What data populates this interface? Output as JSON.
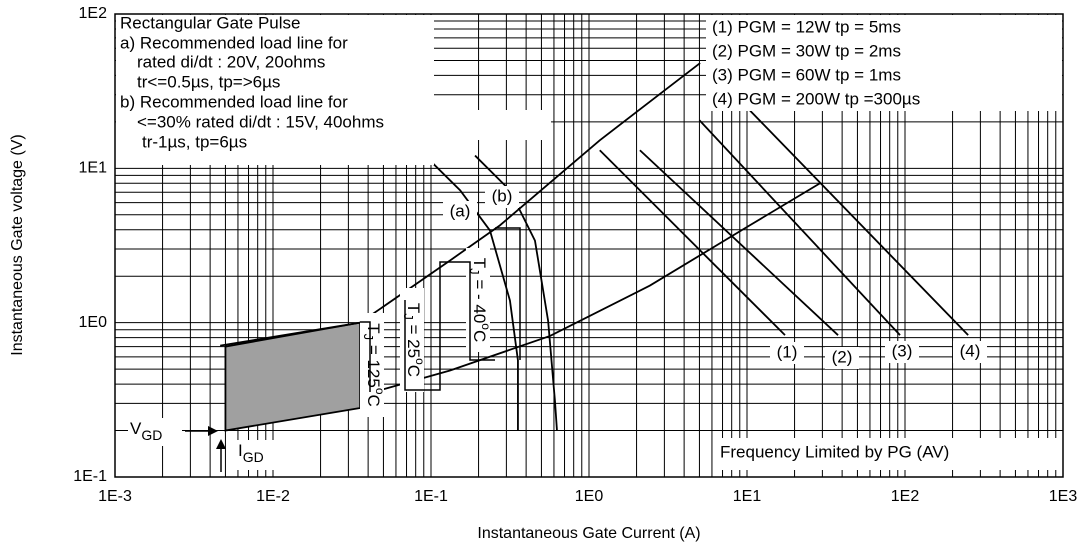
{
  "chart_data": {
    "type": "line",
    "log_x": true,
    "log_y": true,
    "grid": true,
    "xlabel": "Instantaneous Gate Current (A)",
    "ylabel": "Instantaneous Gate voltage (V)",
    "xlim": [
      0.001,
      1000
    ],
    "ylim": [
      0.1,
      100
    ],
    "xticks": [
      {
        "value": 0.001,
        "label": "1E-3"
      },
      {
        "value": 0.01,
        "label": "1E-2"
      },
      {
        "value": 0.1,
        "label": "1E-1"
      },
      {
        "value": 1,
        "label": "1E0"
      },
      {
        "value": 10,
        "label": "1E1"
      },
      {
        "value": 100,
        "label": "1E2"
      },
      {
        "value": 1000,
        "label": "1E3"
      }
    ],
    "yticks": [
      {
        "value": 0.1,
        "label": "1E-1"
      },
      {
        "value": 1,
        "label": "1E0"
      },
      {
        "value": 10,
        "label": "1E1"
      },
      {
        "value": 100,
        "label": "1E2"
      }
    ],
    "series": [
      {
        "name": "(1)",
        "color": "#000000",
        "x": [
          1.17,
          17.4
        ],
        "values": [
          13.1,
          0.83
        ]
      },
      {
        "name": "(2)",
        "color": "#000000",
        "x": [
          2.1,
          37.7
        ],
        "values": [
          13.1,
          0.83
        ]
      },
      {
        "name": "(3)",
        "color": "#000000",
        "x": [
          5.0,
          93
        ],
        "values": [
          20.5,
          0.83
        ]
      },
      {
        "name": "(4)",
        "color": "#000000",
        "x": [
          10.4,
          251
        ],
        "values": [
          23.8,
          0.83
        ]
      },
      {
        "name": "(a)",
        "color": "#000000",
        "x": [
          0.0916,
          0.153,
          0.236,
          0.316,
          0.355,
          0.355
        ],
        "values": [
          12.1,
          7.2,
          3.96,
          1.39,
          0.57,
          0.2
        ]
      },
      {
        "name": "(b)",
        "color": "#000000",
        "x": [
          0.19,
          0.316,
          0.455,
          0.551,
          0.609,
          0.627
        ],
        "values": [
          12.1,
          7.2,
          3.4,
          1.03,
          0.31,
          0.2
        ]
      },
      {
        "color": "#000000",
        "x": [
          0.00463,
          0.0356,
          0.132,
          0.273,
          1.17,
          5.05
        ],
        "values": [
          0.71,
          1.0,
          2.53,
          4.27,
          15.2,
          48.1
        ]
      },
      {
        "color": "#000000",
        "x": [
          0.0411,
          0.132,
          0.567,
          2.43,
          10.4,
          29.0
        ],
        "values": [
          0.35,
          0.49,
          0.82,
          1.74,
          4.27,
          8.0
        ]
      }
    ],
    "region": {
      "color": "#a0a0a0",
      "x": [
        0.005,
        0.0356,
        0.0356,
        0.005
      ],
      "values": [
        0.7,
        1.0,
        0.28,
        0.2
      ]
    },
    "notes": [
      "Rectangular Gate Pulse",
      "a) Recommended load line for",
      "rated di/dt : 20V, 20ohms",
      "tr<=0.5µs, tp=>6µs",
      "b) Recommended load line for",
      "<=30% rated di/dt : 15V, 40ohms",
      "tr-1µs, tp=6µs"
    ],
    "legend_lines": [
      "(1) PGM = 12W tp = 5ms",
      "(2) PGM = 30W tp = 2ms",
      "(3) PGM = 60W tp = 1ms",
      "(4) PGM = 200W tp =300µs"
    ],
    "footnote": "Frequency Limited by PG (AV)",
    "vgd": [
      "V",
      "GD"
    ],
    "igd": [
      "I",
      "GD"
    ],
    "tj_labels": [
      [
        "T",
        "J",
        " = 125",
        "o",
        "C"
      ],
      [
        "T",
        "J",
        " = 25",
        "o",
        "C"
      ],
      [
        "T",
        "J",
        " = - 40",
        "o",
        "C"
      ]
    ]
  }
}
